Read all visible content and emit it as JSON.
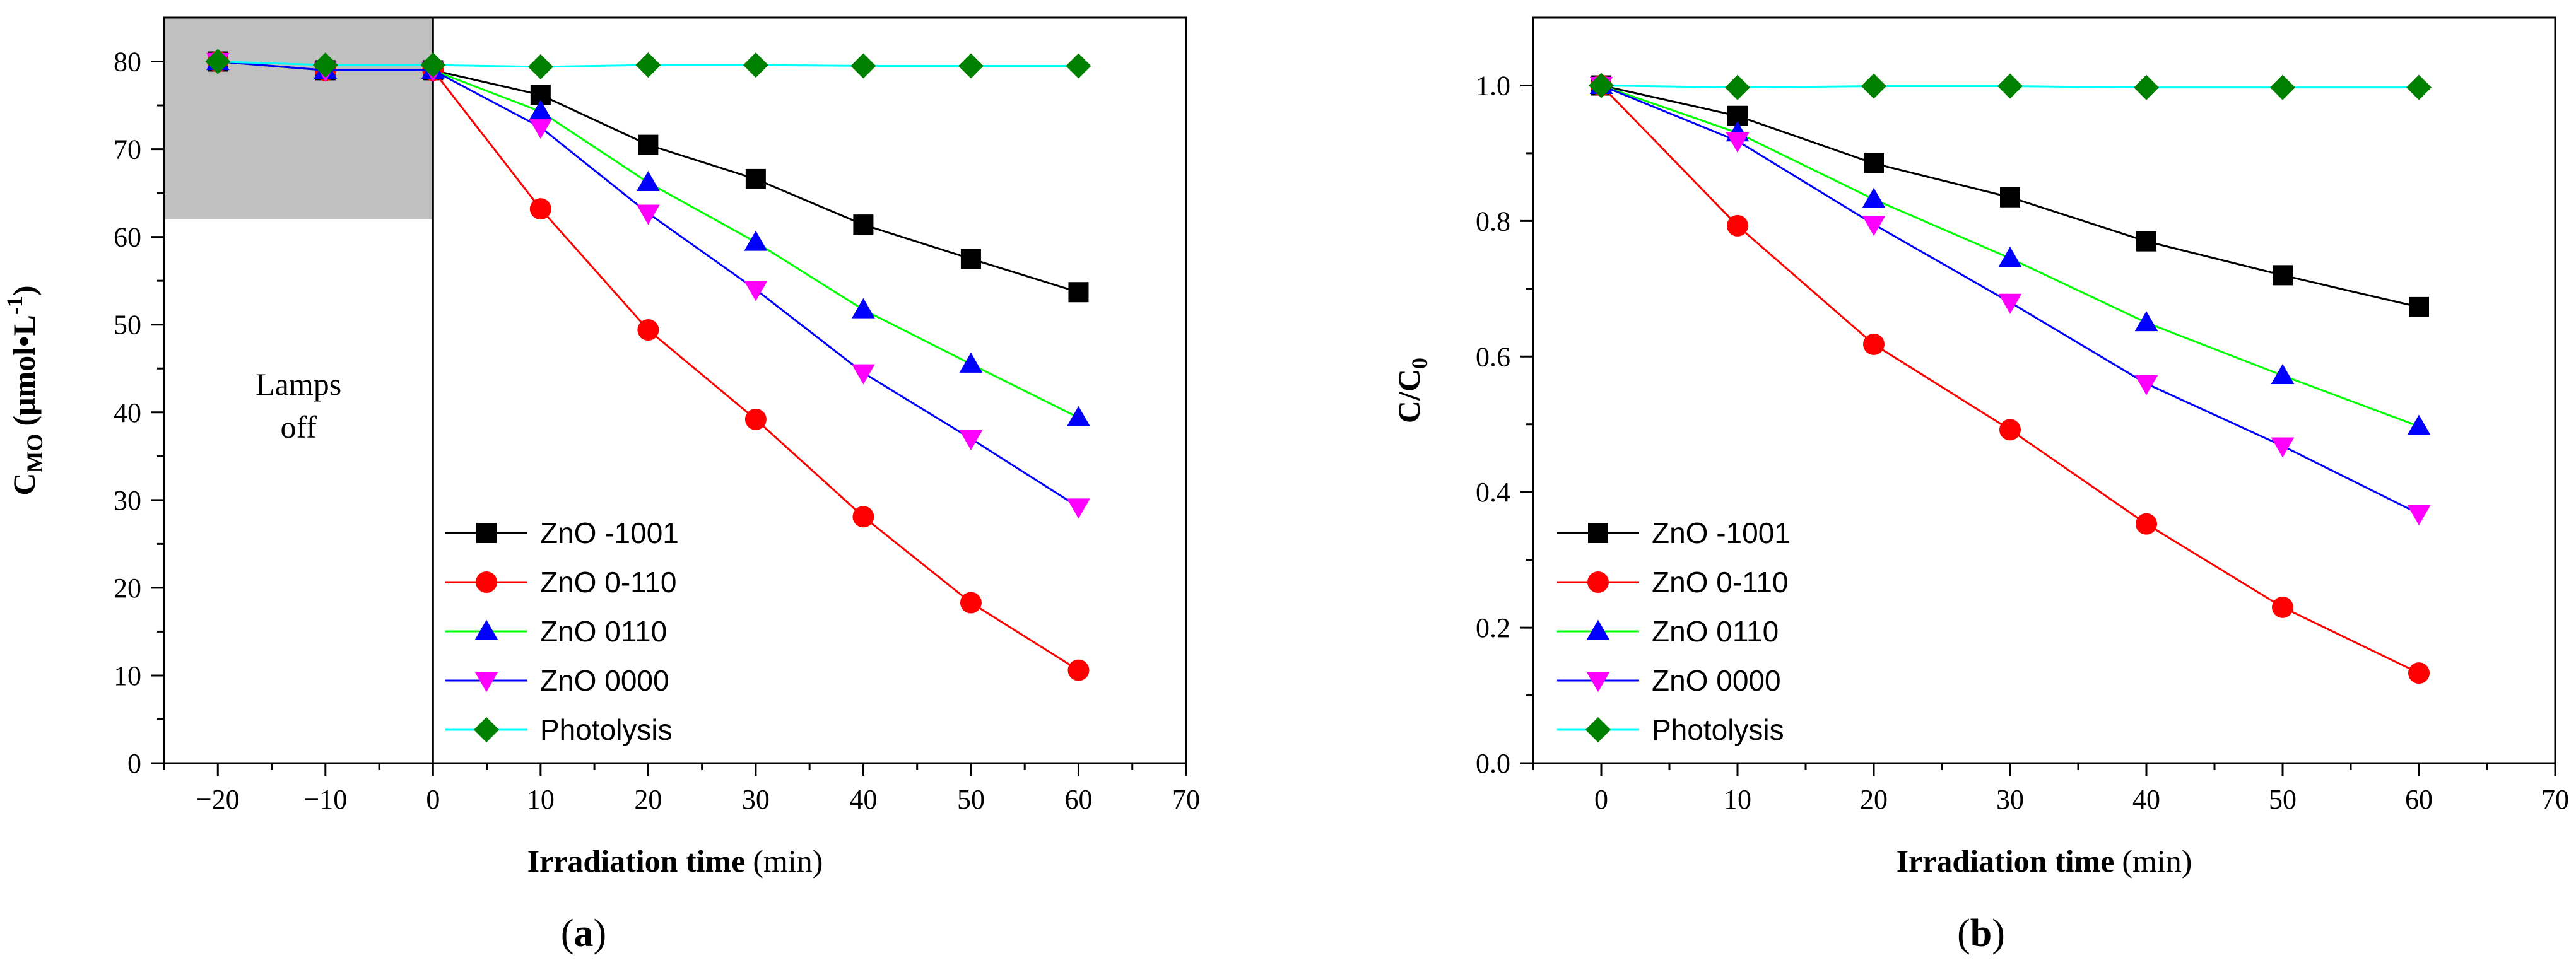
{
  "chart_data": [
    {
      "panel_label": "a",
      "type": "line",
      "xlabel": "Irradiation time",
      "xlabel_unit": "(min)",
      "ylabel_main": "C",
      "ylabel_sub": "MO",
      "ylabel_unit": "(μmol•L",
      "ylabel_exp": "-1",
      "ylabel_close": ")",
      "xlim": [
        -25,
        70
      ],
      "ylim": [
        0,
        85
      ],
      "xticks": [
        -20,
        -10,
        0,
        10,
        20,
        30,
        40,
        50,
        60,
        70
      ],
      "yticks": [
        0,
        10,
        20,
        30,
        40,
        50,
        60,
        70,
        80
      ],
      "shaded_region": {
        "x": [
          -25,
          0
        ],
        "y": [
          62,
          85
        ],
        "color": "#c0c0c0"
      },
      "vertical_line_x": 0,
      "annotation_lines": [
        "Lamps",
        "off"
      ],
      "annotation_at": {
        "x": -12.5,
        "y": 42
      },
      "series": [
        {
          "name": "ZnO -1001",
          "color": "#000000",
          "marker": "square",
          "x": [
            -20,
            -10,
            0,
            10,
            20,
            30,
            40,
            50,
            60
          ],
          "y": [
            80,
            79,
            79,
            76.2,
            70.5,
            66.6,
            61.4,
            57.5,
            53.7
          ]
        },
        {
          "name": "ZnO 0-110",
          "color": "#ff0000",
          "marker": "circle",
          "x": [
            -20,
            -10,
            0,
            10,
            20,
            30,
            40,
            50,
            60
          ],
          "y": [
            80,
            79,
            79,
            63.2,
            49.4,
            39.2,
            28.1,
            18.3,
            10.6
          ]
        },
        {
          "name": "ZnO 0110",
          "color": "#00ff00",
          "marker_color": "#0000ff",
          "marker": "triangle-up",
          "x": [
            -20,
            -10,
            0,
            10,
            20,
            30,
            40,
            50,
            60
          ],
          "y": [
            80,
            79,
            79,
            74.3,
            66.2,
            59.4,
            51.7,
            45.5,
            39.4
          ]
        },
        {
          "name": "ZnO 0000",
          "color": "#0000ff",
          "marker_color": "#ff00ff",
          "marker": "triangle-down",
          "x": [
            -20,
            -10,
            0,
            10,
            20,
            30,
            40,
            50,
            60
          ],
          "y": [
            80,
            79,
            79,
            72.5,
            62.7,
            54,
            44.5,
            37,
            29.2
          ]
        },
        {
          "name": "Photolysis",
          "color": "#00ffff",
          "marker_color": "#008000",
          "marker": "diamond",
          "x": [
            -20,
            -10,
            0,
            10,
            20,
            30,
            40,
            50,
            60
          ],
          "y": [
            80,
            79.6,
            79.6,
            79.4,
            79.6,
            79.6,
            79.5,
            79.5,
            79.5
          ]
        }
      ]
    },
    {
      "panel_label": "b",
      "type": "line",
      "xlabel": "Irradiation time",
      "xlabel_unit": "(min)",
      "ylabel_main": "C/C",
      "ylabel_sub": "0",
      "xlim": [
        -5,
        70
      ],
      "ylim": [
        0,
        1.1
      ],
      "xticks": [
        0,
        10,
        20,
        30,
        40,
        50,
        60,
        70
      ],
      "yticks": [
        0.0,
        0.2,
        0.4,
        0.6,
        0.8,
        1.0
      ],
      "ytick_labels": [
        "0.0",
        "0.2",
        "0.4",
        "0.6",
        "0.8",
        "1.0"
      ],
      "series": [
        {
          "name": "ZnO -1001",
          "color": "#000000",
          "marker": "square",
          "x": [
            0,
            10,
            20,
            30,
            40,
            50,
            60
          ],
          "y": [
            1.0,
            0.955,
            0.885,
            0.835,
            0.77,
            0.72,
            0.673
          ]
        },
        {
          "name": "ZnO 0-110",
          "color": "#ff0000",
          "marker": "circle",
          "x": [
            0,
            10,
            20,
            30,
            40,
            50,
            60
          ],
          "y": [
            1.0,
            0.793,
            0.618,
            0.492,
            0.353,
            0.23,
            0.133
          ]
        },
        {
          "name": "ZnO 0110",
          "color": "#00ff00",
          "marker_color": "#0000ff",
          "marker": "triangle-up",
          "x": [
            0,
            10,
            20,
            30,
            40,
            50,
            60
          ],
          "y": [
            1.0,
            0.93,
            0.832,
            0.745,
            0.65,
            0.572,
            0.497
          ]
        },
        {
          "name": "ZnO 0000",
          "color": "#0000ff",
          "marker_color": "#ff00ff",
          "marker": "triangle-down",
          "x": [
            0,
            10,
            20,
            30,
            40,
            50,
            60
          ],
          "y": [
            1.0,
            0.918,
            0.795,
            0.68,
            0.56,
            0.468,
            0.368
          ]
        },
        {
          "name": "Photolysis",
          "color": "#00ffff",
          "marker_color": "#008000",
          "marker": "diamond",
          "x": [
            0,
            10,
            20,
            30,
            40,
            50,
            60
          ],
          "y": [
            1.0,
            0.997,
            0.999,
            0.999,
            0.997,
            0.997,
            0.997
          ]
        }
      ]
    }
  ]
}
